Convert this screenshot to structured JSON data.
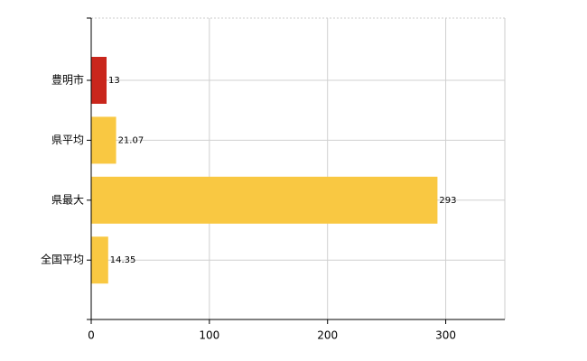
{
  "chart_data": {
    "type": "bar",
    "orientation": "horizontal",
    "categories": [
      "豊明市",
      "県平均",
      "県最大",
      "全国平均"
    ],
    "values": [
      13,
      21.07,
      293,
      14.35
    ],
    "colors": [
      "#c9261c",
      "#f9c842",
      "#f9c842",
      "#f9c842"
    ],
    "xlim": [
      0,
      350
    ],
    "xticks": [
      0,
      100,
      200,
      300
    ],
    "grid": true
  }
}
